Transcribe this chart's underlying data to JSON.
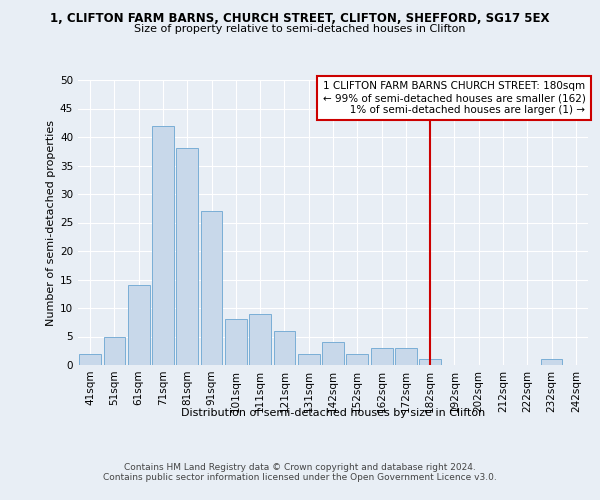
{
  "title": "1, CLIFTON FARM BARNS, CHURCH STREET, CLIFTON, SHEFFORD, SG17 5EX",
  "subtitle": "Size of property relative to semi-detached houses in Clifton",
  "xlabel": "Distribution of semi-detached houses by size in Clifton",
  "ylabel": "Number of semi-detached properties",
  "categories": [
    "41sqm",
    "51sqm",
    "61sqm",
    "71sqm",
    "81sqm",
    "91sqm",
    "101sqm",
    "111sqm",
    "121sqm",
    "131sqm",
    "142sqm",
    "152sqm",
    "162sqm",
    "172sqm",
    "182sqm",
    "192sqm",
    "202sqm",
    "212sqm",
    "222sqm",
    "232sqm",
    "242sqm"
  ],
  "values": [
    2,
    5,
    14,
    42,
    38,
    27,
    8,
    9,
    6,
    2,
    4,
    2,
    3,
    3,
    1,
    0,
    0,
    0,
    0,
    1,
    0
  ],
  "bar_color": "#c8d8ea",
  "bar_edge_color": "#7aaed6",
  "vline_x": 14,
  "vline_color": "#cc0000",
  "annotation_text": "1 CLIFTON FARM BARNS CHURCH STREET: 180sqm\n← 99% of semi-detached houses are smaller (162)\n   1% of semi-detached houses are larger (1) →",
  "annotation_box_color": "#ffffff",
  "annotation_box_edge": "#cc0000",
  "footer_text": "Contains HM Land Registry data © Crown copyright and database right 2024.\nContains public sector information licensed under the Open Government Licence v3.0.",
  "ylim": [
    0,
    50
  ],
  "yticks": [
    0,
    5,
    10,
    15,
    20,
    25,
    30,
    35,
    40,
    45,
    50
  ],
  "background_color": "#e8eef5",
  "plot_background": "#e8eef5",
  "grid_color": "#ffffff",
  "title_fontsize": 8.5,
  "subtitle_fontsize": 8,
  "ylabel_fontsize": 8,
  "xlabel_fontsize": 8,
  "tick_fontsize": 7.5,
  "footer_fontsize": 6.5,
  "annot_fontsize": 7.5
}
